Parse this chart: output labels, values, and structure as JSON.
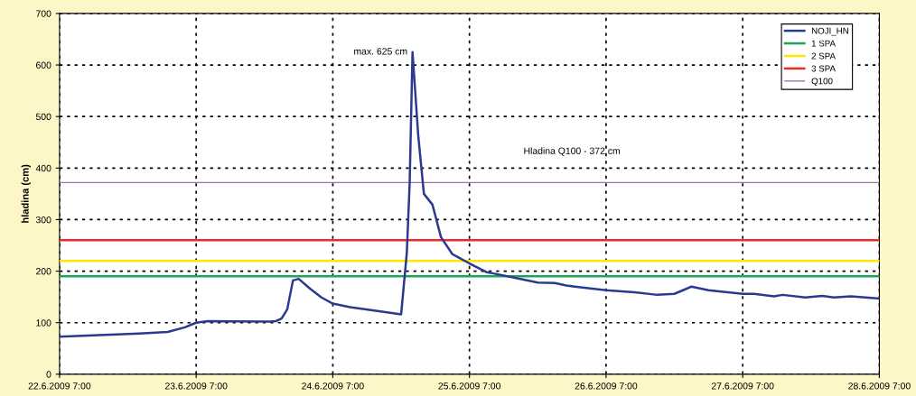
{
  "chart_data": {
    "type": "line",
    "ylabel": "hladina (cm)",
    "ylim": [
      0,
      700
    ],
    "yticks": [
      0,
      100,
      200,
      300,
      400,
      500,
      600,
      700
    ],
    "xlim": [
      "2009-06-22T07:00",
      "2009-06-28T07:00"
    ],
    "xticks": [
      {
        "value": "2009-06-22T07:00",
        "label": "22.6.2009 7:00"
      },
      {
        "value": "2009-06-23T07:00",
        "label": "23.6.2009 7:00"
      },
      {
        "value": "2009-06-24T07:00",
        "label": "24.6.2009 7:00"
      },
      {
        "value": "2009-06-25T07:00",
        "label": "25.6.2009 7:00"
      },
      {
        "value": "2009-06-26T07:00",
        "label": "26.6.2009 7:00"
      },
      {
        "value": "2009-06-27T07:00",
        "label": "27.6.2009 7:00"
      },
      {
        "value": "2009-06-28T07:00",
        "label": "28.6.2009 7:00"
      }
    ],
    "grid": true,
    "legend": "top right",
    "line_style": "solid",
    "marker": "none",
    "series": [
      {
        "name": "NOJI_HN",
        "color": "#2b3990",
        "x": [
          "2009-06-22T07:00",
          "2009-06-22T10:00",
          "2009-06-22T12:00",
          "2009-06-22T21:00",
          "2009-06-23T02:00",
          "2009-06-23T05:00",
          "2009-06-23T07:00",
          "2009-06-23T09:00",
          "2009-06-23T20:00",
          "2009-06-23T21:00",
          "2009-06-23T22:00",
          "2009-06-23T23:00",
          "2009-06-24T00:00",
          "2009-06-24T01:00",
          "2009-06-24T03:00",
          "2009-06-24T05:00",
          "2009-06-24T07:00",
          "2009-06-24T10:00",
          "2009-06-24T14:00",
          "2009-06-24T19:00",
          "2009-06-24T20:00",
          "2009-06-24T20:30",
          "2009-06-24T21:00",
          "2009-06-24T22:00",
          "2009-06-24T23:00",
          "2009-06-25T00:30",
          "2009-06-25T02:00",
          "2009-06-25T04:00",
          "2009-06-25T07:00",
          "2009-06-25T10:00",
          "2009-06-25T11:00",
          "2009-06-25T15:00",
          "2009-06-25T19:00",
          "2009-06-25T22:00",
          "2009-06-26T00:00",
          "2009-06-26T01:30",
          "2009-06-26T07:00",
          "2009-06-26T12:00",
          "2009-06-26T16:00",
          "2009-06-26T19:00",
          "2009-06-26T20:30",
          "2009-06-26T22:00",
          "2009-06-27T01:00",
          "2009-06-27T07:00",
          "2009-06-27T09:00",
          "2009-06-27T12:30",
          "2009-06-27T14:00",
          "2009-06-27T18:00",
          "2009-06-27T21:00",
          "2009-06-27T23:00",
          "2009-06-28T02:00",
          "2009-06-28T07:00"
        ],
        "values": [
          73,
          74,
          75,
          79,
          82,
          91,
          100,
          103,
          102,
          103,
          108,
          126,
          182,
          185,
          166,
          149,
          137,
          130,
          124,
          116,
          236,
          371,
          625,
          464,
          350,
          329,
          266,
          233,
          215,
          198,
          196,
          187,
          178,
          177,
          172,
          170,
          163,
          159,
          154,
          156,
          163,
          170,
          163,
          156,
          156,
          151,
          154,
          149,
          152,
          149,
          151,
          147
        ]
      },
      {
        "name": "1 SPA",
        "color": "#1aa55a",
        "x": [
          "2009-06-22T07:00",
          "2009-06-28T07:00"
        ],
        "values": [
          190,
          190
        ]
      },
      {
        "name": "2 SPA",
        "color": "#ffe800",
        "x": [
          "2009-06-22T07:00",
          "2009-06-28T07:00"
        ],
        "values": [
          220,
          220
        ]
      },
      {
        "name": "3 SPA",
        "color": "#ee2a2a",
        "x": [
          "2009-06-22T07:00",
          "2009-06-28T07:00"
        ],
        "values": [
          260,
          260
        ]
      },
      {
        "name": "Q100",
        "color": "#a070b0",
        "x": [
          "2009-06-22T07:00",
          "2009-06-28T07:00"
        ],
        "values": [
          372,
          372
        ]
      }
    ],
    "annotations": [
      {
        "text": "max. 625 cm",
        "x": "2009-06-24T21:00",
        "y": 625
      },
      "Hladina Q100 - 372 cm"
    ]
  }
}
